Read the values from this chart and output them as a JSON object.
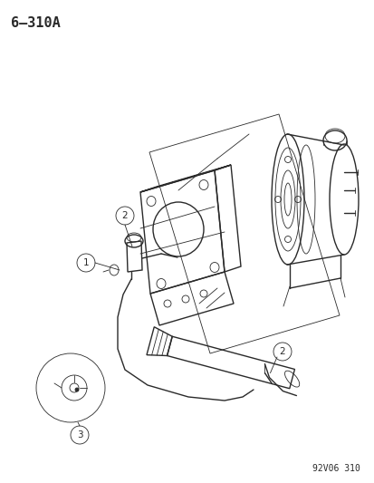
{
  "title": "6–310A",
  "footnote": "92V06 310",
  "bg_color": "#ffffff",
  "line_color": "#2a2a2a",
  "label_color": "#2a2a2a",
  "figsize": [
    4.14,
    5.33
  ],
  "dpi": 100,
  "title_fontsize": 11,
  "footnote_fontsize": 7,
  "lw_main": 1.0,
  "lw_thin": 0.6,
  "lw_thick": 1.3
}
